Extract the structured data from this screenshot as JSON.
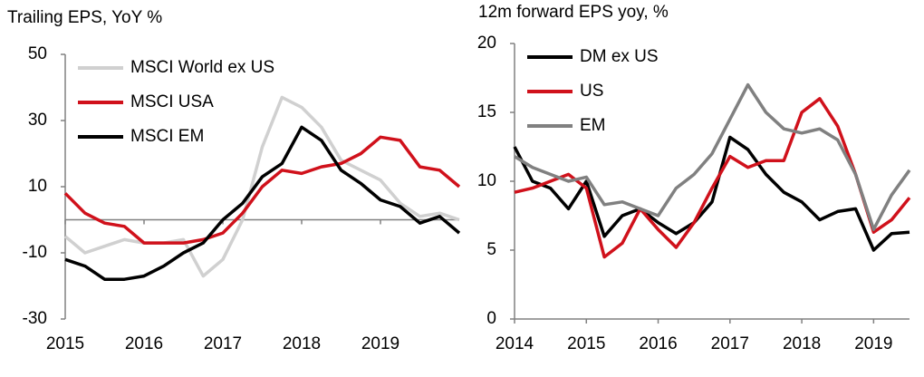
{
  "chart_data": [
    {
      "type": "line",
      "title": "Trailing EPS, YoY %",
      "x": [
        2015,
        2015.25,
        2015.5,
        2015.75,
        2016,
        2016.25,
        2016.5,
        2016.75,
        2017,
        2017.25,
        2017.5,
        2017.75,
        2018,
        2018.25,
        2018.5,
        2018.75,
        2019,
        2019.25,
        2019.5,
        2019.75,
        2020
      ],
      "xlim": [
        2015,
        2020
      ],
      "xticks": [
        2015,
        2016,
        2017,
        2018,
        2019
      ],
      "ylim": [
        -30,
        50
      ],
      "yticks": [
        -30,
        -10,
        10,
        30,
        50
      ],
      "legend": "upper-left",
      "series": [
        {
          "name": "MSCI World ex US",
          "color": "#d0d0d0",
          "values": [
            -5,
            -10,
            -8,
            -6,
            -7,
            -7,
            -6,
            -17,
            -12,
            0,
            22,
            37,
            34,
            28,
            18,
            15,
            12,
            5,
            1,
            2,
            0
          ]
        },
        {
          "name": "MSCI USA",
          "color": "#d0111b",
          "values": [
            8,
            2,
            -1,
            -2,
            -7,
            -7,
            -7,
            -6,
            -4,
            2,
            10,
            15,
            14,
            16,
            17,
            20,
            25,
            24,
            16,
            15,
            10
          ]
        },
        {
          "name": "MSCI EM",
          "color": "#000000",
          "values": [
            -12,
            -14,
            -18,
            -18,
            -17,
            -14,
            -10,
            -7,
            0,
            5,
            13,
            17,
            28,
            24,
            15,
            11,
            6,
            4,
            -1,
            1,
            -4
          ]
        }
      ]
    },
    {
      "type": "line",
      "title": "12m forward EPS yoy, %",
      "x": [
        2014,
        2014.25,
        2014.5,
        2014.75,
        2015,
        2015.25,
        2015.5,
        2015.75,
        2016,
        2016.25,
        2016.5,
        2016.75,
        2017,
        2017.25,
        2017.5,
        2017.75,
        2018,
        2018.25,
        2018.5,
        2018.75,
        2019,
        2019.25,
        2019.5
      ],
      "xlim": [
        2014,
        2019.5
      ],
      "xticks": [
        2014,
        2015,
        2016,
        2017,
        2018,
        2019
      ],
      "ylim": [
        0,
        20
      ],
      "yticks": [
        0,
        5,
        10,
        15,
        20
      ],
      "legend": "upper-left",
      "series": [
        {
          "name": "DM ex US",
          "color": "#000000",
          "values": [
            12.5,
            10,
            9.5,
            8,
            10,
            6,
            7.5,
            8,
            7,
            6.2,
            7,
            8.5,
            13.2,
            12.3,
            10.5,
            9.2,
            8.5,
            7.2,
            7.8,
            8,
            5,
            6.2,
            6.3
          ]
        },
        {
          "name": "US",
          "color": "#d0111b",
          "values": [
            9.2,
            9.5,
            10,
            10.5,
            9.5,
            4.5,
            5.5,
            8,
            6.5,
            5.2,
            7,
            9.5,
            11.8,
            11,
            11.5,
            11.5,
            15,
            16,
            14,
            10.5,
            6.3,
            7.2,
            8.8
          ]
        },
        {
          "name": "EM",
          "color": "#808080",
          "values": [
            11.8,
            11,
            10.5,
            10,
            10.3,
            8.3,
            8.5,
            8,
            7.5,
            9.5,
            10.5,
            12,
            14.5,
            17,
            15,
            13.8,
            13.5,
            13.8,
            13,
            10.5,
            6.5,
            9,
            10.8
          ]
        }
      ]
    }
  ]
}
